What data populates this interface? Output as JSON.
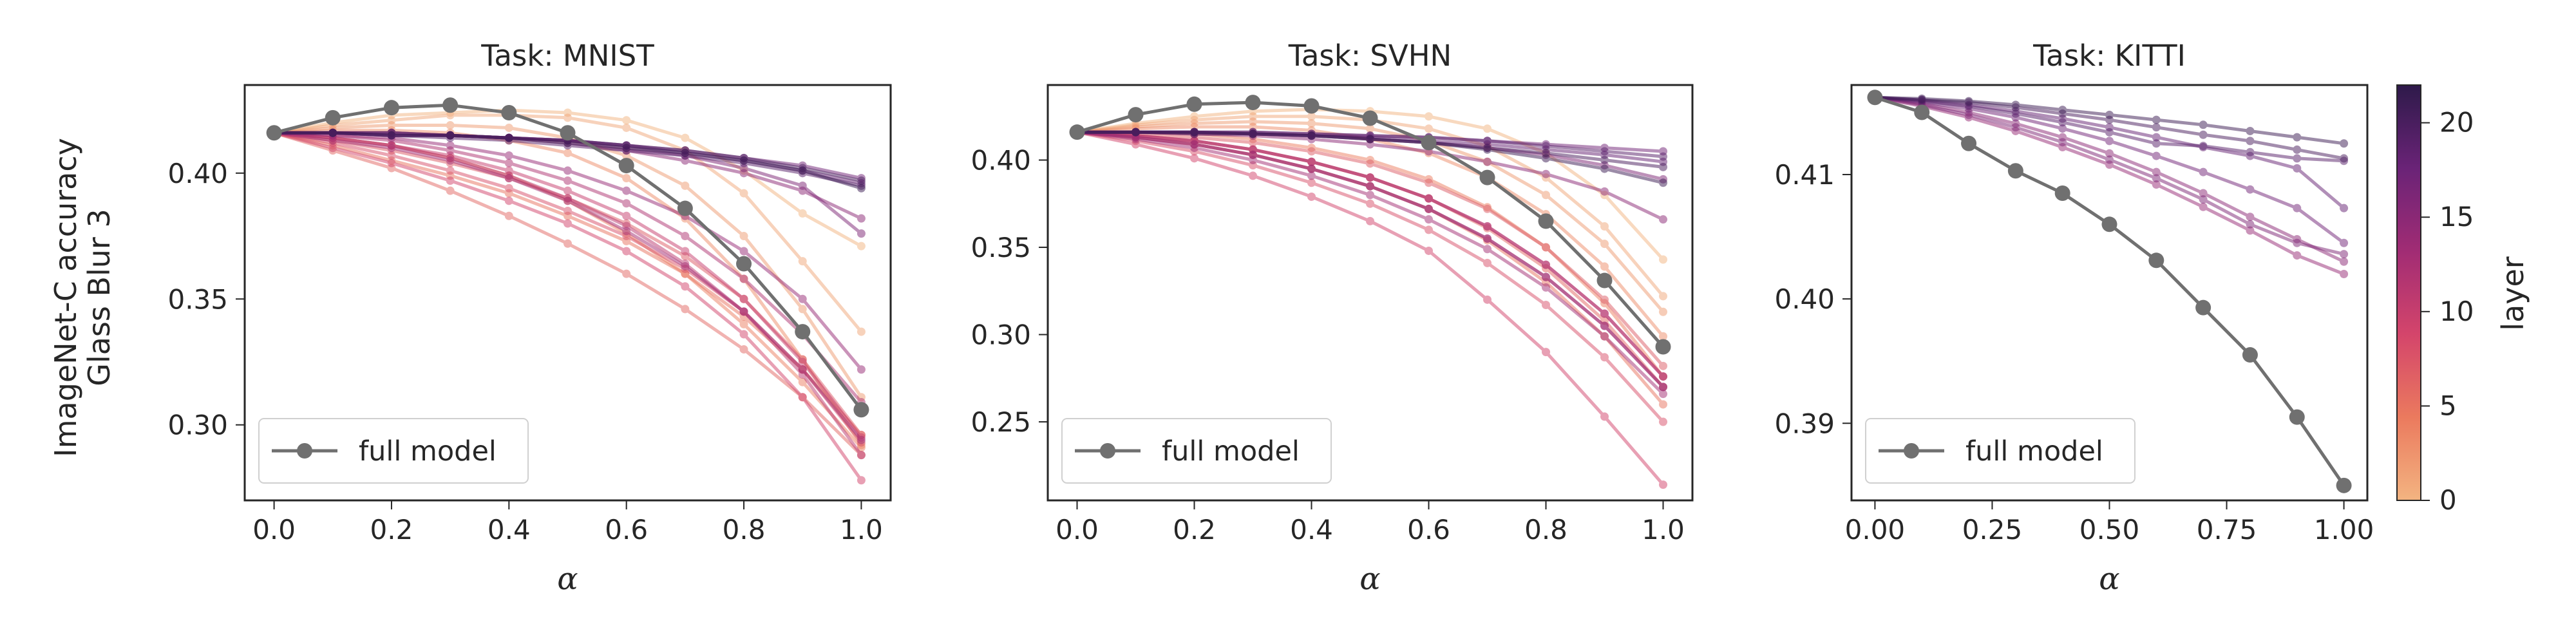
{
  "figure": {
    "ylabel_line1": "ImageNet-C accuracy",
    "ylabel_line2": "Glass Blur 3",
    "colorbar": {
      "label": "layer",
      "min": 0,
      "max": 22,
      "ticks": [
        "0",
        "5",
        "10",
        "15",
        "20"
      ],
      "colors": [
        "#f3b481",
        "#eb7a5e",
        "#d4456b",
        "#a12c74",
        "#6a2377",
        "#2e1a4a"
      ]
    }
  },
  "chart_data": [
    {
      "type": "line",
      "title": "Task: MNIST",
      "xlabel": "α",
      "ylabel": "ImageNet-C accuracy Glass Blur 3",
      "xlim": [
        -0.05,
        1.05
      ],
      "ylim": [
        0.27,
        0.435
      ],
      "xticks": [
        0.0,
        0.2,
        0.4,
        0.6,
        0.8,
        1.0
      ],
      "xtick_labels": [
        "0.0",
        "0.2",
        "0.4",
        "0.6",
        "0.8",
        "1.0"
      ],
      "yticks": [
        0.3,
        0.35,
        0.4
      ],
      "ytick_labels": [
        "0.30",
        "0.35",
        "0.40"
      ],
      "x": [
        0.0,
        0.1,
        0.2,
        0.3,
        0.4,
        0.5,
        0.6,
        0.7,
        0.8,
        0.9,
        1.0
      ],
      "legend": {
        "label": "full model",
        "position": "lower-left"
      },
      "full_model": {
        "name": "full model",
        "color": "#707070",
        "values": [
          0.416,
          0.422,
          0.426,
          0.427,
          0.424,
          0.416,
          0.403,
          0.386,
          0.364,
          0.337,
          0.306
        ]
      },
      "layer_series": [
        {
          "layer": 0,
          "values": [
            0.416,
            0.42,
            0.423,
            0.424,
            0.425,
            0.424,
            0.421,
            0.414,
            0.401,
            0.384,
            0.371
          ]
        },
        {
          "layer": 1,
          "values": [
            0.416,
            0.419,
            0.421,
            0.423,
            0.423,
            0.422,
            0.418,
            0.409,
            0.392,
            0.365,
            0.337
          ]
        },
        {
          "layer": 2,
          "values": [
            0.416,
            0.418,
            0.419,
            0.419,
            0.418,
            0.414,
            0.407,
            0.395,
            0.375,
            0.346,
            0.311
          ]
        },
        {
          "layer": 3,
          "values": [
            0.416,
            0.417,
            0.417,
            0.416,
            0.413,
            0.408,
            0.398,
            0.382,
            0.358,
            0.326,
            0.292
          ]
        },
        {
          "layer": 4,
          "values": [
            0.416,
            0.414,
            0.411,
            0.406,
            0.399,
            0.389,
            0.376,
            0.36,
            0.34,
            0.317,
            0.291
          ]
        },
        {
          "layer": 5,
          "values": [
            0.416,
            0.411,
            0.405,
            0.399,
            0.392,
            0.383,
            0.373,
            0.36,
            0.343,
            0.322,
            0.296
          ]
        },
        {
          "layer": 6,
          "values": [
            0.416,
            0.409,
            0.402,
            0.393,
            0.383,
            0.372,
            0.36,
            0.346,
            0.33,
            0.311,
            0.288
          ]
        },
        {
          "layer": 7,
          "values": [
            0.416,
            0.413,
            0.409,
            0.404,
            0.398,
            0.39,
            0.38,
            0.367,
            0.35,
            0.326,
            0.296
          ]
        },
        {
          "layer": 8,
          "values": [
            0.416,
            0.412,
            0.407,
            0.401,
            0.394,
            0.385,
            0.375,
            0.362,
            0.345,
            0.322,
            0.293
          ]
        },
        {
          "layer": 9,
          "values": [
            0.416,
            0.41,
            0.404,
            0.397,
            0.389,
            0.38,
            0.369,
            0.355,
            0.336,
            0.311,
            0.278
          ]
        },
        {
          "layer": 10,
          "values": [
            0.416,
            0.414,
            0.411,
            0.407,
            0.401,
            0.393,
            0.383,
            0.369,
            0.35,
            0.325,
            0.295
          ]
        },
        {
          "layer": 11,
          "values": [
            0.416,
            0.414,
            0.411,
            0.406,
            0.399,
            0.39,
            0.379,
            0.364,
            0.345,
            0.32,
            0.288
          ]
        },
        {
          "layer": 12,
          "values": [
            0.416,
            0.415,
            0.413,
            0.409,
            0.404,
            0.397,
            0.388,
            0.375,
            0.358,
            0.336,
            0.309
          ]
        },
        {
          "layer": 13,
          "values": [
            0.416,
            0.413,
            0.41,
            0.405,
            0.398,
            0.389,
            0.377,
            0.363,
            0.345,
            0.322,
            0.294
          ]
        },
        {
          "layer": 14,
          "values": [
            0.416,
            0.415,
            0.414,
            0.411,
            0.407,
            0.401,
            0.393,
            0.383,
            0.369,
            0.35,
            0.322
          ]
        },
        {
          "layer": 15,
          "values": [
            0.416,
            0.416,
            0.416,
            0.415,
            0.414,
            0.412,
            0.409,
            0.405,
            0.4,
            0.393,
            0.382
          ]
        },
        {
          "layer": 16,
          "values": [
            0.416,
            0.416,
            0.416,
            0.415,
            0.414,
            0.413,
            0.41,
            0.407,
            0.402,
            0.395,
            0.376
          ]
        },
        {
          "layer": 17,
          "values": [
            0.416,
            0.416,
            0.415,
            0.415,
            0.414,
            0.413,
            0.411,
            0.409,
            0.406,
            0.403,
            0.398
          ]
        },
        {
          "layer": 18,
          "values": [
            0.416,
            0.416,
            0.415,
            0.415,
            0.414,
            0.413,
            0.411,
            0.408,
            0.405,
            0.401,
            0.396
          ]
        },
        {
          "layer": 19,
          "values": [
            0.416,
            0.416,
            0.415,
            0.414,
            0.413,
            0.411,
            0.409,
            0.407,
            0.404,
            0.4,
            0.395
          ]
        },
        {
          "layer": 20,
          "values": [
            0.416,
            0.416,
            0.416,
            0.415,
            0.414,
            0.413,
            0.411,
            0.409,
            0.406,
            0.402,
            0.397
          ]
        },
        {
          "layer": 21,
          "values": [
            0.416,
            0.416,
            0.415,
            0.415,
            0.414,
            0.412,
            0.41,
            0.408,
            0.405,
            0.401,
            0.394
          ]
        }
      ]
    },
    {
      "type": "line",
      "title": "Task: SVHN",
      "xlabel": "α",
      "ylabel": "",
      "xlim": [
        -0.05,
        1.05
      ],
      "ylim": [
        0.205,
        0.443
      ],
      "xticks": [
        0.0,
        0.2,
        0.4,
        0.6,
        0.8,
        1.0
      ],
      "xtick_labels": [
        "0.0",
        "0.2",
        "0.4",
        "0.6",
        "0.8",
        "1.0"
      ],
      "yticks": [
        0.25,
        0.3,
        0.35,
        0.4
      ],
      "ytick_labels": [
        "0.25",
        "0.30",
        "0.35",
        "0.40"
      ],
      "x": [
        0.0,
        0.1,
        0.2,
        0.3,
        0.4,
        0.5,
        0.6,
        0.7,
        0.8,
        0.9,
        1.0
      ],
      "legend": {
        "label": "full model",
        "position": "lower-left"
      },
      "full_model": {
        "name": "full model",
        "color": "#707070",
        "values": [
          0.416,
          0.426,
          0.432,
          0.433,
          0.431,
          0.424,
          0.41,
          0.39,
          0.365,
          0.331,
          0.293
        ]
      },
      "layer_series": [
        {
          "layer": 0,
          "values": [
            0.416,
            0.421,
            0.425,
            0.428,
            0.429,
            0.428,
            0.425,
            0.418,
            0.404,
            0.38,
            0.343
          ]
        },
        {
          "layer": 1,
          "values": [
            0.416,
            0.42,
            0.423,
            0.425,
            0.425,
            0.423,
            0.418,
            0.408,
            0.39,
            0.362,
            0.322
          ]
        },
        {
          "layer": 2,
          "values": [
            0.416,
            0.419,
            0.421,
            0.422,
            0.421,
            0.418,
            0.411,
            0.399,
            0.38,
            0.352,
            0.313
          ]
        },
        {
          "layer": 3,
          "values": [
            0.416,
            0.418,
            0.419,
            0.419,
            0.417,
            0.412,
            0.404,
            0.39,
            0.369,
            0.339,
            0.299
          ]
        },
        {
          "layer": 4,
          "values": [
            0.416,
            0.416,
            0.415,
            0.412,
            0.407,
            0.4,
            0.389,
            0.373,
            0.35,
            0.318,
            0.276
          ]
        },
        {
          "layer": 5,
          "values": [
            0.416,
            0.413,
            0.409,
            0.403,
            0.395,
            0.385,
            0.372,
            0.354,
            0.33,
            0.299,
            0.26
          ]
        },
        {
          "layer": 6,
          "values": [
            0.416,
            0.414,
            0.411,
            0.406,
            0.399,
            0.39,
            0.378,
            0.361,
            0.338,
            0.308,
            0.27
          ]
        },
        {
          "layer": 7,
          "values": [
            0.416,
            0.415,
            0.413,
            0.41,
            0.405,
            0.398,
            0.387,
            0.372,
            0.35,
            0.32,
            0.282
          ]
        },
        {
          "layer": 8,
          "values": [
            0.416,
            0.411,
            0.405,
            0.397,
            0.387,
            0.375,
            0.36,
            0.341,
            0.317,
            0.287,
            0.25
          ]
        },
        {
          "layer": 9,
          "values": [
            0.416,
            0.409,
            0.401,
            0.391,
            0.379,
            0.365,
            0.348,
            0.32,
            0.29,
            0.253,
            0.214
          ]
        },
        {
          "layer": 10,
          "values": [
            0.416,
            0.414,
            0.411,
            0.406,
            0.399,
            0.39,
            0.378,
            0.362,
            0.34,
            0.312,
            0.276
          ]
        },
        {
          "layer": 11,
          "values": [
            0.416,
            0.413,
            0.409,
            0.403,
            0.395,
            0.385,
            0.372,
            0.355,
            0.333,
            0.305,
            0.27
          ]
        },
        {
          "layer": 12,
          "values": [
            0.416,
            0.414,
            0.411,
            0.406,
            0.399,
            0.39,
            0.378,
            0.362,
            0.34,
            0.312,
            0.276
          ]
        },
        {
          "layer": 13,
          "values": [
            0.416,
            0.412,
            0.407,
            0.4,
            0.391,
            0.38,
            0.366,
            0.349,
            0.327,
            0.299,
            0.266
          ]
        },
        {
          "layer": 14,
          "values": [
            0.416,
            0.413,
            0.409,
            0.403,
            0.395,
            0.385,
            0.372,
            0.355,
            0.333,
            0.305,
            0.27
          ]
        },
        {
          "layer": 15,
          "values": [
            0.416,
            0.416,
            0.415,
            0.414,
            0.412,
            0.409,
            0.405,
            0.399,
            0.392,
            0.382,
            0.366
          ]
        },
        {
          "layer": 16,
          "values": [
            0.416,
            0.416,
            0.416,
            0.415,
            0.414,
            0.412,
            0.41,
            0.407,
            0.403,
            0.397,
            0.389
          ]
        },
        {
          "layer": 17,
          "values": [
            0.416,
            0.416,
            0.416,
            0.416,
            0.415,
            0.414,
            0.413,
            0.411,
            0.409,
            0.407,
            0.405
          ]
        },
        {
          "layer": 18,
          "values": [
            0.416,
            0.416,
            0.416,
            0.415,
            0.414,
            0.413,
            0.411,
            0.409,
            0.406,
            0.403,
            0.399
          ]
        },
        {
          "layer": 19,
          "values": [
            0.416,
            0.416,
            0.416,
            0.416,
            0.415,
            0.414,
            0.413,
            0.411,
            0.408,
            0.405,
            0.402
          ]
        },
        {
          "layer": 20,
          "values": [
            0.416,
            0.416,
            0.415,
            0.415,
            0.414,
            0.412,
            0.41,
            0.407,
            0.404,
            0.4,
            0.396
          ]
        },
        {
          "layer": 21,
          "values": [
            0.416,
            0.416,
            0.416,
            0.415,
            0.414,
            0.412,
            0.41,
            0.406,
            0.401,
            0.395,
            0.387
          ]
        }
      ]
    },
    {
      "type": "line",
      "title": "Task: KITTI",
      "xlabel": "α",
      "ylabel": "",
      "xlim": [
        -0.05,
        1.05
      ],
      "ylim": [
        0.3838,
        0.4172
      ],
      "xticks": [
        0.0,
        0.25,
        0.5,
        0.75,
        1.0
      ],
      "xtick_labels": [
        "0.00",
        "0.25",
        "0.50",
        "0.75",
        "1.00"
      ],
      "yticks": [
        0.39,
        0.4,
        0.41
      ],
      "ytick_labels": [
        "0.39",
        "0.40",
        "0.41"
      ],
      "x": [
        0.0,
        0.1,
        0.2,
        0.3,
        0.4,
        0.5,
        0.6,
        0.7,
        0.8,
        0.9,
        1.0
      ],
      "legend": {
        "label": "full model",
        "position": "lower-left"
      },
      "full_model": {
        "name": "full model",
        "color": "#707070",
        "values": [
          0.4162,
          0.415,
          0.4125,
          0.4103,
          0.4085,
          0.406,
          0.4031,
          0.3993,
          0.3955,
          0.3905,
          0.385
        ]
      },
      "layer_series": [
        {
          "layer": 14,
          "values": [
            0.4162,
            0.4155,
            0.4146,
            0.4135,
            0.4122,
            0.4108,
            0.4092,
            0.4074,
            0.4055,
            0.4035,
            0.402
          ]
        },
        {
          "layer": 15,
          "values": [
            0.4162,
            0.4157,
            0.415,
            0.4141,
            0.413,
            0.4117,
            0.4102,
            0.4085,
            0.4066,
            0.4048,
            0.403
          ]
        },
        {
          "layer": 16,
          "values": [
            0.4162,
            0.4156,
            0.4148,
            0.4138,
            0.4126,
            0.4112,
            0.4097,
            0.408,
            0.406,
            0.4045,
            0.4036
          ]
        },
        {
          "layer": 17,
          "values": [
            0.4162,
            0.4158,
            0.4153,
            0.4146,
            0.4137,
            0.4127,
            0.4115,
            0.4102,
            0.4088,
            0.4073,
            0.4045
          ]
        },
        {
          "layer": 18,
          "values": [
            0.4162,
            0.416,
            0.4156,
            0.4151,
            0.4145,
            0.4138,
            0.413,
            0.4122,
            0.4115,
            0.4105,
            0.4073
          ]
        },
        {
          "layer": 19,
          "values": [
            0.4162,
            0.4159,
            0.4155,
            0.4149,
            0.4142,
            0.4134,
            0.4125,
            0.4123,
            0.4118,
            0.4113,
            0.4111
          ]
        },
        {
          "layer": 20,
          "values": [
            0.4162,
            0.416,
            0.4158,
            0.4154,
            0.4149,
            0.4144,
            0.4138,
            0.4132,
            0.4127,
            0.412,
            0.4113
          ]
        },
        {
          "layer": 21,
          "values": [
            0.4162,
            0.4161,
            0.4159,
            0.4156,
            0.4152,
            0.4148,
            0.4144,
            0.414,
            0.4135,
            0.413,
            0.4125
          ]
        }
      ]
    }
  ]
}
